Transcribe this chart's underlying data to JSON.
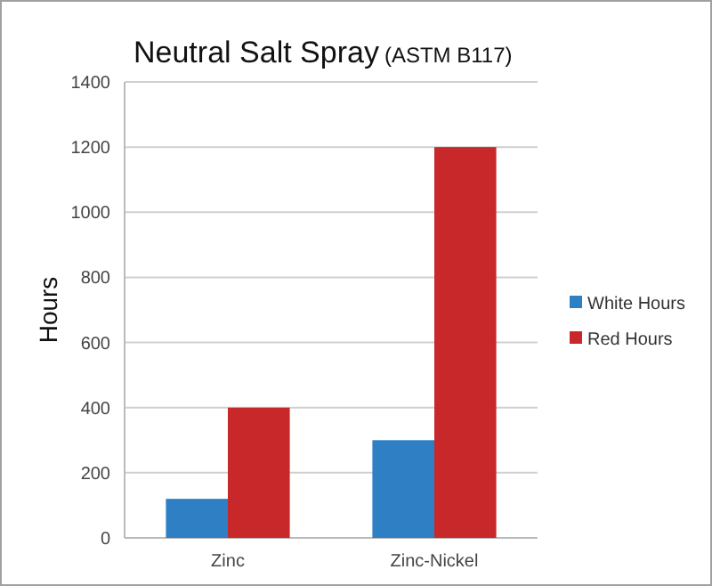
{
  "chart_data": {
    "type": "bar",
    "title": "Neutral Salt Spray",
    "subtitle": "(ASTM B117)",
    "ylabel": "Hours",
    "categories": [
      "Zinc",
      "Zinc-Nickel"
    ],
    "series": [
      {
        "name": "White Hours",
        "color": "#2e7fc4",
        "values": [
          120,
          300
        ]
      },
      {
        "name": "Red Hours",
        "color": "#c8282a",
        "values": [
          400,
          1200
        ]
      }
    ],
    "ylim": [
      0,
      1400
    ],
    "yticks": [
      0,
      200,
      400,
      600,
      800,
      1000,
      1200,
      1400
    ],
    "grid": "y",
    "legend": "right"
  }
}
